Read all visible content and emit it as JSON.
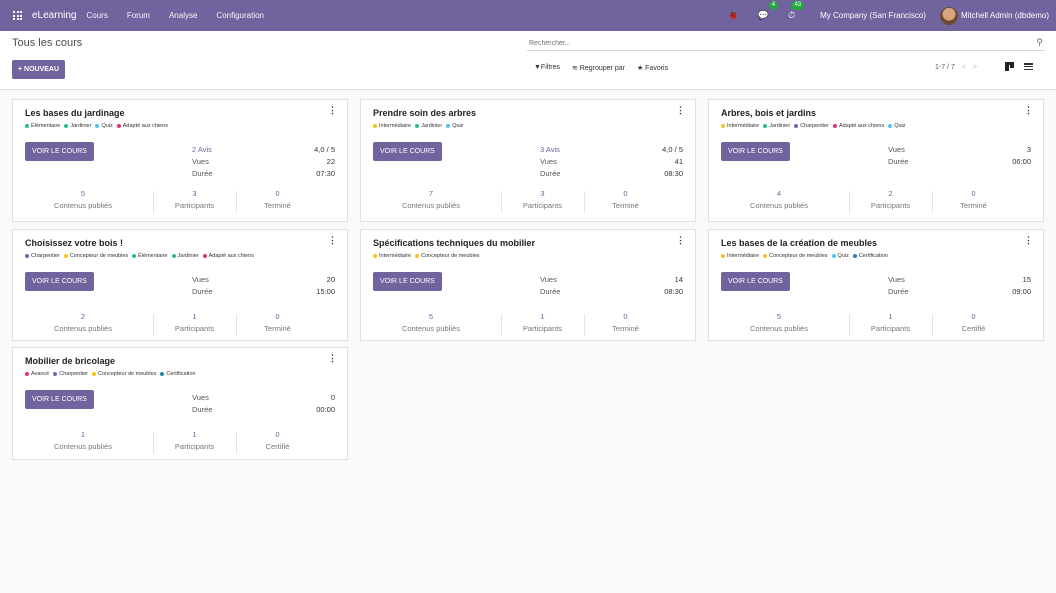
{
  "navbar": {
    "brand": "eLearning",
    "menus": [
      "Cours",
      "Forum",
      "Analyse",
      "Configuration"
    ],
    "systray": {
      "bug_icon": "🐞",
      "messages_icon": "💬",
      "messages_badge": "4",
      "activity_icon": "⏱",
      "activity_badge": "43"
    },
    "company": "My Company (San Francisco)",
    "user": "Mitchell Admin (dbdemo)"
  },
  "control": {
    "breadcrumb": "Tous les cours",
    "new_button": "+ NOUVEAU",
    "search_placeholder": "Rechercher...",
    "filters": "▼Filtres",
    "group_by": "≋ Regrouper par",
    "favorites": "★ Favoris",
    "pager": "1-7 / 7",
    "pager_prev": "<",
    "pager_next": ">"
  },
  "colors": {
    "primary": "#71639e",
    "green": "#28a745"
  },
  "courses": [
    {
      "title": "Les bases du jardinage",
      "tags": [
        {
          "label": "Élémentaire",
          "color": "#2bbf7e"
        },
        {
          "label": "Jardinier",
          "color": "#2bbf7e"
        },
        {
          "label": "Quiz",
          "color": "#4fc3f7"
        },
        {
          "label": "Adapté aux chiens",
          "color": "#e8315b"
        }
      ],
      "button": "VOIR LE COURS",
      "stats": [
        {
          "label": "2 Avis",
          "value": "4,0 / 5",
          "link": true
        },
        {
          "label": "Vues",
          "value": "22"
        },
        {
          "label": "Durée",
          "value": "07:30"
        }
      ],
      "footer": [
        {
          "num": "5",
          "label": "Contenus publiés"
        },
        {
          "num": "3",
          "label": "Participants"
        },
        {
          "num": "0",
          "label": "Terminé"
        }
      ]
    },
    {
      "title": "Prendre soin des arbres",
      "tags": [
        {
          "label": "Intermédiaire",
          "color": "#f5c518"
        },
        {
          "label": "Jardinier",
          "color": "#2bbf7e"
        },
        {
          "label": "Quiz",
          "color": "#4fc3f7"
        }
      ],
      "button": "VOIR LE COURS",
      "stats": [
        {
          "label": "3 Avis",
          "value": "4,0 / 5",
          "link": true
        },
        {
          "label": "Vues",
          "value": "41"
        },
        {
          "label": "Durée",
          "value": "08:30"
        }
      ],
      "footer": [
        {
          "num": "7",
          "label": "Contenus publiés"
        },
        {
          "num": "3",
          "label": "Participants"
        },
        {
          "num": "0",
          "label": "Terminé"
        }
      ]
    },
    {
      "title": "Arbres, bois et jardins",
      "tags": [
        {
          "label": "Intermédiaire",
          "color": "#f5c518"
        },
        {
          "label": "Jardinier",
          "color": "#2bbf7e"
        },
        {
          "label": "Charpentier",
          "color": "#7b5fb8"
        },
        {
          "label": "Adapté aux chiens",
          "color": "#e8315b"
        },
        {
          "label": "Quiz",
          "color": "#4fc3f7"
        }
      ],
      "button": "VOIR LE COURS",
      "stats": [
        {
          "label": "Vues",
          "value": "3"
        },
        {
          "label": "Durée",
          "value": "06:00"
        }
      ],
      "footer": [
        {
          "num": "4",
          "label": "Contenus publiés"
        },
        {
          "num": "2",
          "label": "Participants"
        },
        {
          "num": "0",
          "label": "Terminé"
        }
      ]
    },
    {
      "title": "Choisissez votre bois !",
      "tags": [
        {
          "label": "Charpentier",
          "color": "#7b5fb8"
        },
        {
          "label": "Concepteur de meubles",
          "color": "#f5c518"
        },
        {
          "label": "Élémentaire",
          "color": "#2bbf7e"
        },
        {
          "label": "Jardinier",
          "color": "#2bbf7e"
        },
        {
          "label": "Adapté aux chiens",
          "color": "#e8315b"
        }
      ],
      "button": "VOIR LE COURS",
      "stats": [
        {
          "label": "Vues",
          "value": "20"
        },
        {
          "label": "Durée",
          "value": "15:00"
        }
      ],
      "footer": [
        {
          "num": "2",
          "label": "Contenus publiés"
        },
        {
          "num": "1",
          "label": "Participants"
        },
        {
          "num": "0",
          "label": "Terminé"
        }
      ]
    },
    {
      "title": "Spécifications techniques du mobilier",
      "tags": [
        {
          "label": "Intermédiaire",
          "color": "#f5c518"
        },
        {
          "label": "Concepteur de meubles",
          "color": "#f5c518"
        }
      ],
      "button": "VOIR LE COURS",
      "stats": [
        {
          "label": "Vues",
          "value": "14"
        },
        {
          "label": "Durée",
          "value": "08:30"
        }
      ],
      "footer": [
        {
          "num": "5",
          "label": "Contenus publiés"
        },
        {
          "num": "1",
          "label": "Participants"
        },
        {
          "num": "0",
          "label": "Terminé"
        }
      ]
    },
    {
      "title": "Les bases de la création de meubles",
      "tags": [
        {
          "label": "Intermédiaire",
          "color": "#f5c518"
        },
        {
          "label": "Concepteur de meubles",
          "color": "#f5c518"
        },
        {
          "label": "Quiz",
          "color": "#4fc3f7"
        },
        {
          "label": "Certification",
          "color": "#1e88a8"
        }
      ],
      "button": "VOIR LE COURS",
      "stats": [
        {
          "label": "Vues",
          "value": "15"
        },
        {
          "label": "Durée",
          "value": "09:00"
        }
      ],
      "footer": [
        {
          "num": "5",
          "label": "Contenus publiés"
        },
        {
          "num": "1",
          "label": "Participants"
        },
        {
          "num": "0",
          "label": "Certifié"
        }
      ]
    },
    {
      "title": "Mobilier de bricolage",
      "tags": [
        {
          "label": "Avancé",
          "color": "#e8315b"
        },
        {
          "label": "Charpentier",
          "color": "#7b5fb8"
        },
        {
          "label": "Concepteur de meubles",
          "color": "#f5c518"
        },
        {
          "label": "Certification",
          "color": "#1e88a8"
        }
      ],
      "button": "VOIR LE COURS",
      "stats": [
        {
          "label": "Vues",
          "value": "0"
        },
        {
          "label": "Durée",
          "value": "00:00"
        }
      ],
      "footer": [
        {
          "num": "1",
          "label": "Contenus publiés"
        },
        {
          "num": "1",
          "label": "Participants"
        },
        {
          "num": "0",
          "label": "Certifié"
        }
      ]
    }
  ]
}
